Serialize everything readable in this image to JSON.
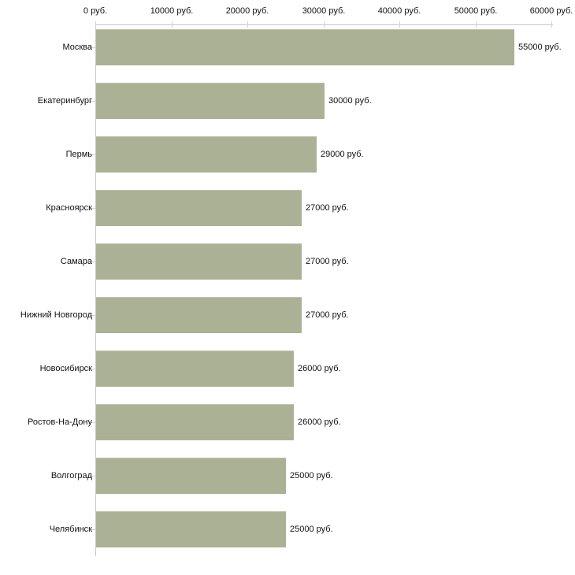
{
  "chart_data": {
    "type": "bar",
    "orientation": "horizontal",
    "title": "",
    "xlabel": "",
    "ylabel": "",
    "unit": "руб.",
    "xlim": [
      0,
      60000
    ],
    "grid": false,
    "legend": null,
    "categories": [
      "Москва",
      "Екатеринбург",
      "Пермь",
      "Красноярск",
      "Самара",
      "Нижний Новгород",
      "Новосибирск",
      "Ростов-На-Дону",
      "Волгоград",
      "Челябинск"
    ],
    "values": [
      55000,
      30000,
      29000,
      27000,
      27000,
      27000,
      26000,
      26000,
      25000,
      25000
    ],
    "value_labels": [
      "55000 руб.",
      "30000 руб.",
      "29000 руб.",
      "27000 руб.",
      "27000 руб.",
      "27000 руб.",
      "26000 руб.",
      "26000 руб.",
      "25000 руб.",
      "25000 руб."
    ],
    "x_ticks": [
      0,
      10000,
      20000,
      30000,
      40000,
      50000,
      60000
    ],
    "x_tick_labels": [
      "0 руб.",
      "10000 руб.",
      "20000 руб.",
      "30000 руб.",
      "40000 руб.",
      "50000 руб.",
      "60000 руб."
    ],
    "colors": {
      "bar_fill": "#abb194",
      "axis_line": "#c8c8c8",
      "tick_mark": "#d9d5bb",
      "label_text": "#111111",
      "background": "#ffffff"
    }
  }
}
